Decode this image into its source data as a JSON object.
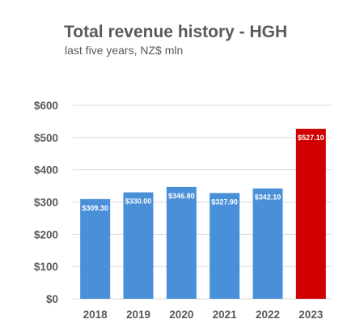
{
  "chart_data": {
    "type": "bar",
    "title": "Total revenue history - HGH",
    "subtitle": "last five years, NZ$ mln",
    "categories": [
      "2018",
      "2019",
      "2020",
      "2021",
      "2022",
      "2023"
    ],
    "values": [
      309.3,
      330.0,
      346.8,
      327.9,
      342.1,
      527.1
    ],
    "data_labels": [
      "$309.30",
      "$330.00",
      "$346.80",
      "$327.90",
      "$342.10",
      "$527.10"
    ],
    "bar_colors": [
      "#4a90d9",
      "#4a90d9",
      "#4a90d9",
      "#4a90d9",
      "#4a90d9",
      "#d00000"
    ],
    "y_ticks": [
      "$0",
      "$100",
      "$200",
      "$300",
      "$400",
      "$500",
      "$600"
    ],
    "ylim": [
      0,
      600
    ],
    "grid": true,
    "legend": "none"
  }
}
